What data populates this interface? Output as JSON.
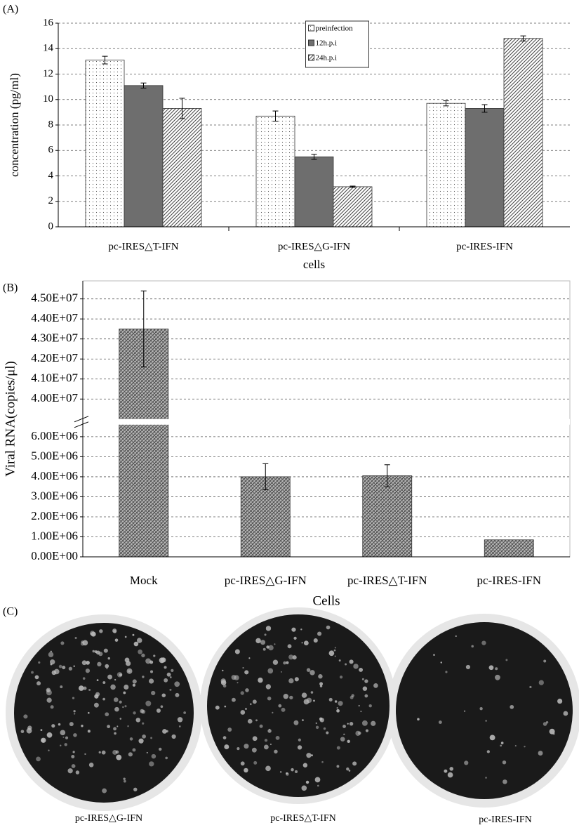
{
  "panel_labels": [
    "(A)",
    "(B)",
    "(C)"
  ],
  "chart_data": [
    {
      "type": "bar",
      "x_label": "cells",
      "y_label": "concentration (pg/ml)",
      "categories": [
        "pc-IRES△T-IFN",
        "pc-IRES△G-IFN",
        "pc-IRES-IFN"
      ],
      "series": [
        {
          "name": "preinfection",
          "color": "#ffffff",
          "values": [
            13.1,
            8.7,
            9.7
          ],
          "errors": [
            0.3,
            0.4,
            0.2
          ]
        },
        {
          "name": "12h.p.i",
          "color": "#6e6e6e",
          "values": [
            11.1,
            5.5,
            9.3
          ],
          "errors": [
            0.2,
            0.2,
            0.3
          ]
        },
        {
          "name": "24h.p.i",
          "color": "#ffffff",
          "values": [
            9.3,
            3.15,
            14.8
          ],
          "errors": [
            0.8,
            0.05,
            0.2
          ]
        }
      ],
      "ylim": [
        0,
        16
      ],
      "yticks": [
        0,
        2,
        4,
        6,
        8,
        10,
        12,
        14,
        16
      ],
      "grid": true,
      "legend": "upper center"
    },
    {
      "type": "bar",
      "x_label": "Cells",
      "y_label": "Viral RNA(copies/μl)",
      "categories": [
        "Mock",
        "pc-IRES△G-IFN",
        "pc-IRES△T-IFN",
        "pc-IRES-IFN"
      ],
      "values": [
        43500000,
        4000000,
        4050000,
        850000
      ],
      "errors": [
        1900000,
        650000,
        550000,
        null
      ],
      "color": "#b8b8b8",
      "ylim": [
        0,
        45900000
      ],
      "ybreak": [
        6600000,
        39000000
      ],
      "yticks": [
        {
          "value": 0,
          "label": "0.00E+00"
        },
        {
          "value": 1000000,
          "label": "1.00E+06"
        },
        {
          "value": 2000000,
          "label": "2.00E+06"
        },
        {
          "value": 3000000,
          "label": "3.00E+06"
        },
        {
          "value": 4000000,
          "label": "4.00E+06"
        },
        {
          "value": 5000000,
          "label": "5.00E+06"
        },
        {
          "value": 6000000,
          "label": "6.00E+06"
        },
        {
          "value": 40000000,
          "label": "4.00E+07"
        },
        {
          "value": 41000000,
          "label": "4.10E+07"
        },
        {
          "value": 42000000,
          "label": "4.20E+07"
        },
        {
          "value": 43000000,
          "label": "4.30E+07"
        },
        {
          "value": 44000000,
          "label": "4.40E+07"
        },
        {
          "value": 45000000,
          "label": "4.50E+07"
        }
      ],
      "grid": true
    }
  ],
  "photo": {
    "labels": [
      "pc-IRES△G-IFN",
      "pc-IRES△T-IFN",
      "pc-IRES-IFN"
    ]
  }
}
